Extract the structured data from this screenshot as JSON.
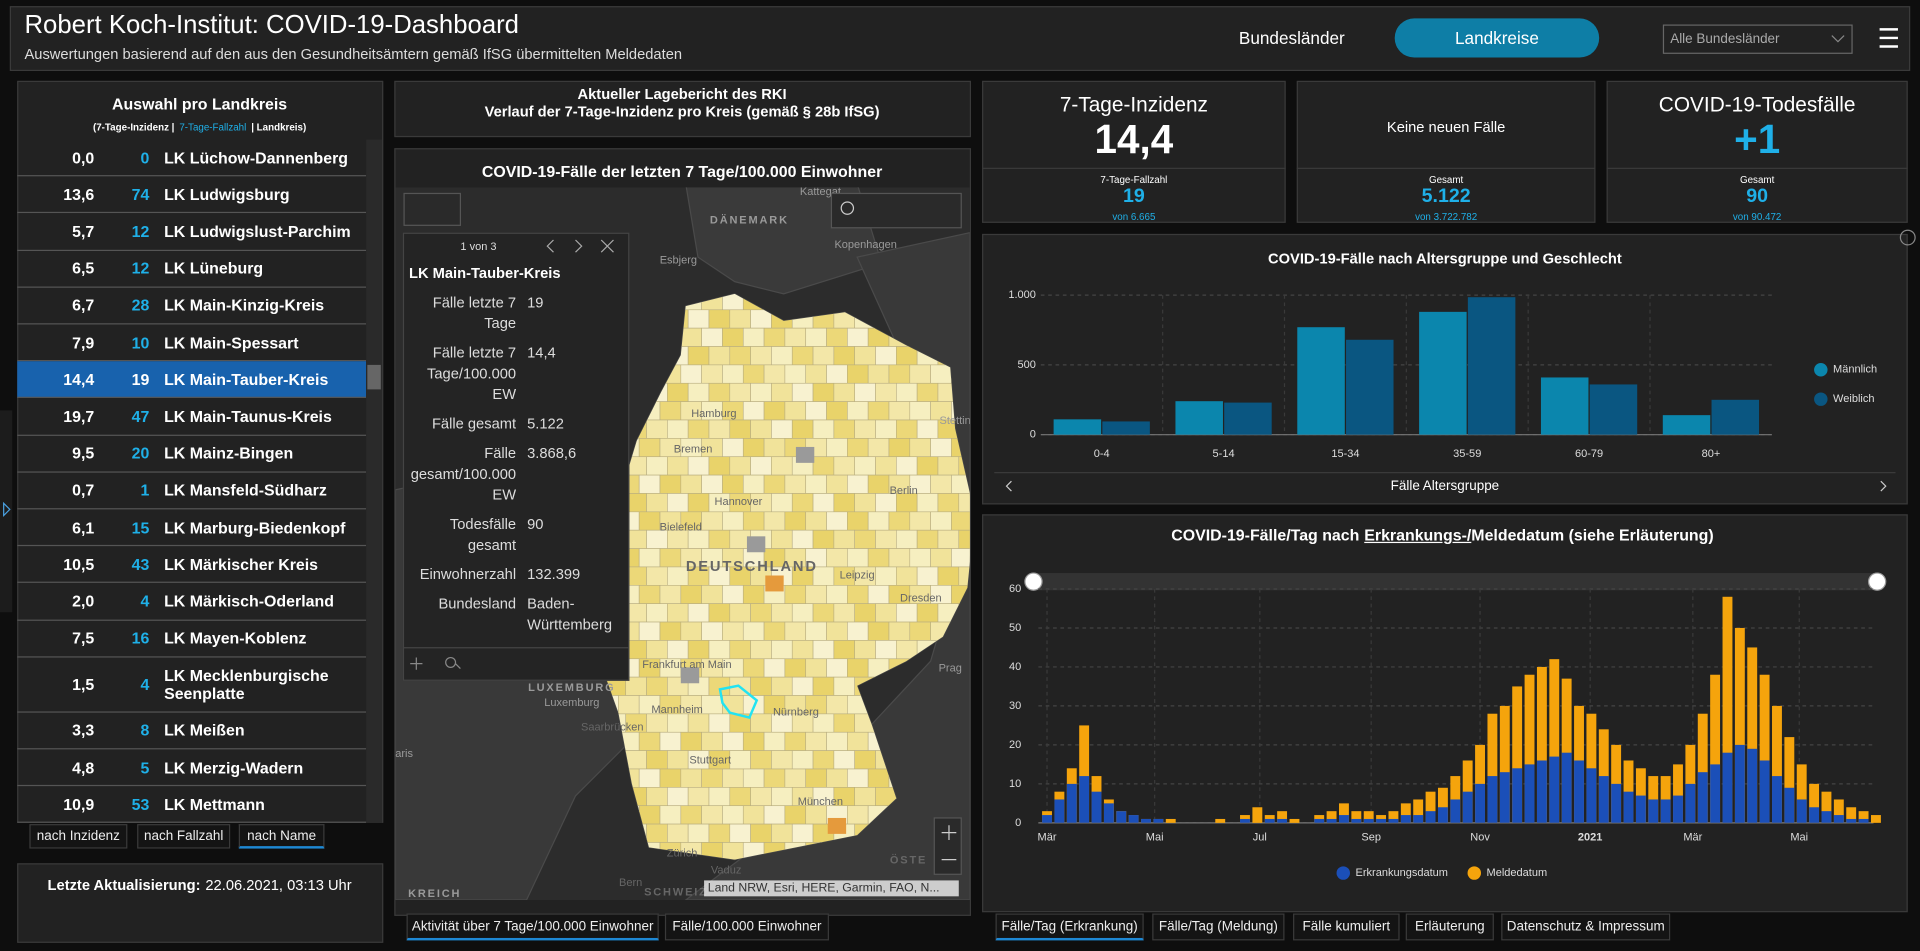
{
  "header": {
    "title": "Robert Koch-Institut: COVID-19-Dashboard",
    "subtitle": "Auswertungen basierend auf den aus den Gesundheitsämtern gemäß IfSG übermittelten Meldedaten",
    "nav": [
      "Bundesländer",
      "Landkreise"
    ],
    "dropdown": "Alle Bundesländer"
  },
  "district_list": {
    "title": "Auswahl pro Landkreis",
    "legend": [
      "(7-Tage-Inzidenz |",
      "7-Tage-Fallzahl",
      "| Landkreis)"
    ],
    "rows": [
      [
        "0,0",
        "0",
        "LK Lüchow-Dannenberg"
      ],
      [
        "13,6",
        "74",
        "LK Ludwigsburg"
      ],
      [
        "5,7",
        "12",
        "LK Ludwigslust-Parchim"
      ],
      [
        "6,5",
        "12",
        "LK Lüneburg"
      ],
      [
        "6,7",
        "28",
        "LK Main-Kinzig-Kreis"
      ],
      [
        "7,9",
        "10",
        "LK Main-Spessart"
      ],
      [
        "14,4",
        "19",
        "LK Main-Tauber-Kreis"
      ],
      [
        "19,7",
        "47",
        "LK Main-Taunus-Kreis"
      ],
      [
        "9,5",
        "20",
        "LK Mainz-Bingen"
      ],
      [
        "0,7",
        "1",
        "LK Mansfeld-Südharz"
      ],
      [
        "6,1",
        "15",
        "LK Marburg-Biedenkopf"
      ],
      [
        "10,5",
        "43",
        "LK Märkischer Kreis"
      ],
      [
        "2,0",
        "4",
        "LK Märkisch-Oderland"
      ],
      [
        "7,5",
        "16",
        "LK Mayen-Koblenz"
      ],
      [
        "1,5",
        "4",
        "LK Mecklenburgische Seenplatte"
      ],
      [
        "3,3",
        "8",
        "LK Meißen"
      ],
      [
        "4,8",
        "5",
        "LK Merzig-Wadern"
      ],
      [
        "10,9",
        "53",
        "LK Mettmann"
      ]
    ],
    "selected_row": 6,
    "sort_buttons": [
      "nach Inzidenz",
      "nach Fallzahl",
      "nach Name"
    ],
    "update_label": "Letzte Aktualisierung:",
    "update_value": "22.06.2021, 03:13 Uhr"
  },
  "report": [
    "Aktueller Lagebericht des RKI",
    "Verlauf der 7-Tage-Inzidenz pro Kreis (gemäß § 28b IfSG)"
  ],
  "map": {
    "title": "COVID-19-Fälle der letzten 7 Tage/100.000 Einwohner",
    "attribution": "Land NRW, Esri, HERE, Garmin, FAO, N...",
    "labels": [
      "Kattegat",
      "DÄNEMARK",
      "Esbjerg",
      "Kopenhagen",
      "Hamburg",
      "Bremen",
      "Hannover",
      "Bielefeld",
      "Berlin",
      "Stettin",
      "DEUTSCHLAND",
      "Leipzig",
      "Dresden",
      "Frankfurt am Main",
      "Mannheim",
      "Nürnberg",
      "Saarbrücken",
      "Stuttgart",
      "München",
      "LUXEMBURG",
      "Luxemburg",
      "Prag",
      "Zürich",
      "Vaduz",
      "Bern",
      "SCHWEIZ",
      "KREICH",
      "ÖSTE",
      "aris"
    ],
    "popup": {
      "counter": "1 von 3",
      "name": "LK Main-Tauber-Kreis",
      "fields": [
        [
          "Fälle letzte 7 Tage",
          "19"
        ],
        [
          "Fälle letzte 7 Tage/100.000 EW",
          "14,4"
        ],
        [
          "Fälle gesamt",
          "5.122"
        ],
        [
          "Fälle gesamt/100.000 EW",
          "3.868,6"
        ],
        [
          "Todesfälle gesamt",
          "90"
        ],
        [
          "Einwohnerzahl",
          "132.399"
        ],
        [
          "Bundesland",
          "Baden-Württemberg"
        ]
      ]
    },
    "tabs": [
      "Aktivität über 7 Tage/100.000 Einwohner",
      "Fälle/100.000 Einwohner"
    ]
  },
  "kpis": [
    {
      "title": "7-Tage-Inzidenz",
      "value": "14,4",
      "sub_label": "7-Tage-Fallzahl",
      "sub_value": "19",
      "sub_note": "von 6.665"
    },
    {
      "title": "Keine neuen Fälle",
      "sub_label": "Gesamt",
      "sub_value": "5.122",
      "sub_note": "von 3.722.782"
    },
    {
      "title": "COVID-19-Todesfälle",
      "value": "+1",
      "sub_label": "Gesamt",
      "sub_value": "90",
      "sub_note": "von 90.472"
    }
  ],
  "bottom_tabs": [
    "Fälle/Tag (Erkrankung)",
    "Fälle/Tag (Meldung)",
    "Fälle kumuliert",
    "Erläuterung",
    "Datenschutz & Impressum"
  ],
  "chart_data": [
    {
      "type": "bar",
      "title": "COVID-19-Fälle nach Altersgruppe und Geschlecht",
      "x_label": "Fälle Altersgruppe",
      "categories": [
        "0-4",
        "5-14",
        "15-34",
        "35-59",
        "60-79",
        "80+"
      ],
      "series": [
        {
          "name": "Männlich",
          "color": "#0b86ad",
          "values": [
            110,
            240,
            770,
            880,
            410,
            140
          ]
        },
        {
          "name": "Weiblich",
          "color": "#0a5681",
          "values": [
            95,
            230,
            680,
            985,
            360,
            250
          ]
        }
      ],
      "ylim": [
        0,
        1000
      ],
      "yticks": [
        0,
        500,
        {
          "value": 1000,
          "label": "1.000"
        }
      ],
      "grid": true,
      "legend": "right"
    },
    {
      "type": "bar",
      "title": [
        "COVID-19-Fälle/Tag nach",
        "Erkrankungs-/",
        "Meldedatum (siehe Erläuterung)"
      ],
      "x": [
        0,
        1,
        2,
        3,
        4,
        5,
        6,
        7,
        8,
        9,
        10,
        11,
        12,
        13,
        14,
        15,
        16,
        17,
        18,
        19,
        20,
        21,
        22,
        23,
        24,
        25,
        26,
        27,
        28,
        29,
        30,
        31,
        32,
        33,
        34,
        35,
        36,
        37,
        38,
        39,
        40,
        41,
        42,
        43,
        44,
        45,
        46,
        47,
        48,
        49,
        50,
        51,
        52,
        53,
        54,
        55,
        56,
        57,
        58,
        59,
        60,
        61,
        62,
        63,
        64,
        65,
        66,
        67
      ],
      "series": [
        {
          "name": "Meldedatum",
          "color": "#f5a40c",
          "values": [
            3,
            8,
            14,
            25,
            12,
            6,
            3,
            2,
            1,
            1,
            1,
            0,
            0,
            0,
            1,
            0,
            2,
            4,
            2,
            3,
            1,
            0,
            2,
            3,
            5,
            3,
            3,
            2,
            3,
            5,
            6,
            8,
            9,
            12,
            16,
            20,
            28,
            30,
            35,
            38,
            40,
            42,
            37,
            30,
            28,
            24,
            20,
            16,
            14,
            12,
            12,
            15,
            20,
            28,
            38,
            58,
            50,
            45,
            38,
            30,
            22,
            15,
            10,
            8,
            6,
            4,
            3,
            2
          ]
        },
        {
          "name": "Erkrankungsdatum",
          "color": "#1b4fb8",
          "values": [
            2,
            6,
            10,
            12,
            8,
            5,
            3,
            2,
            1,
            1,
            0,
            0,
            0,
            0,
            0,
            0,
            1,
            0,
            1,
            1,
            0,
            0,
            1,
            1,
            2,
            1,
            1,
            1,
            1,
            2,
            2,
            3,
            4,
            6,
            8,
            10,
            12,
            13,
            14,
            15,
            16,
            17,
            18,
            16,
            14,
            12,
            10,
            8,
            7,
            6,
            6,
            7,
            10,
            13,
            15,
            18,
            20,
            19,
            16,
            12,
            9,
            6,
            4,
            3,
            2,
            1,
            1,
            0
          ]
        }
      ],
      "legend_order": [
        1,
        0
      ],
      "xlim": [
        -0.7,
        66.8
      ],
      "xticks": [
        {
          "value": 0,
          "label": "Mär"
        },
        {
          "value": 8.7,
          "label": "Mai"
        },
        {
          "value": 17.2,
          "label": "Jul"
        },
        {
          "value": 26.2,
          "label": "Sep"
        },
        {
          "value": 35,
          "label": "Nov"
        },
        {
          "value": 43.9,
          "label": "2021"
        },
        {
          "value": 52.2,
          "label": "Mär"
        },
        {
          "value": 60.8,
          "label": "Mai"
        }
      ],
      "ylim": [
        0,
        60
      ],
      "yticks": [
        0,
        10,
        20,
        30,
        40,
        50,
        60
      ],
      "grid": true,
      "legend": "bottom"
    }
  ]
}
